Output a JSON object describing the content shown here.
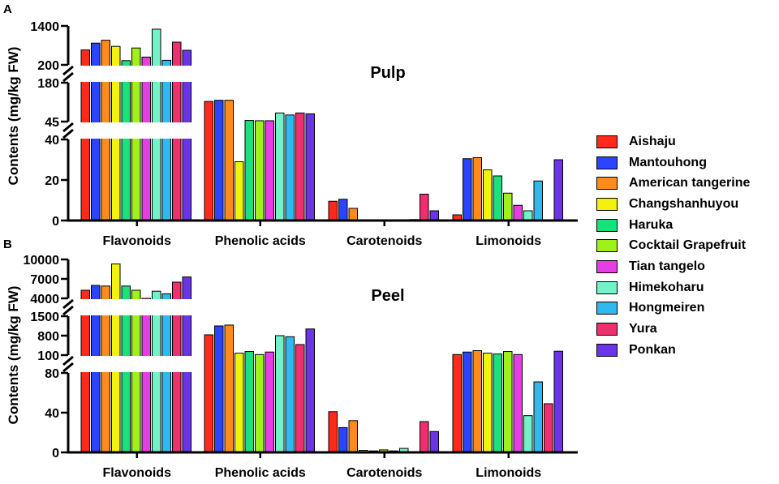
{
  "figure": {
    "series": [
      "Aishaju",
      "Mantouhong",
      "American tangerine",
      "Changshanhuyou",
      "Haruka",
      "Cocktail Grapefruit",
      "Tian tangelo",
      "Himekoharu",
      "Hongmeiren",
      "Yura",
      "Ponkan"
    ],
    "colors": [
      "#ff2a1a",
      "#2a44ff",
      "#ff8c1a",
      "#f2f20a",
      "#19e27a",
      "#9ef21a",
      "#e63de6",
      "#73f2c8",
      "#30b8f0",
      "#f0306e",
      "#6a35e6"
    ]
  },
  "chart_data": [
    {
      "type": "bar",
      "panel_label": "A",
      "title": "Pulp",
      "ylabel": "Contents (mg/kg FW)",
      "categories": [
        "Flavonoids",
        "Phenolic acids",
        "Carotenoids",
        "Limonoids"
      ],
      "axis_segments": [
        {
          "range": [
            0,
            40
          ],
          "ticks": [
            "0",
            "20",
            "40"
          ]
        },
        {
          "range": [
            45,
            180
          ],
          "ticks": [
            "45",
            "180"
          ]
        },
        {
          "range": [
            200,
            1400
          ],
          "ticks": [
            "200",
            "1400"
          ]
        }
      ],
      "series": [
        {
          "name": "Aishaju",
          "values": [
            660,
            115,
            9.5,
            2.8
          ]
        },
        {
          "name": "Mantouhong",
          "values": [
            870,
            119,
            10.5,
            30.5
          ]
        },
        {
          "name": "American tangerine",
          "values": [
            960,
            119,
            6,
            31
          ]
        },
        {
          "name": "Changshanhuyou",
          "values": [
            770,
            29,
            0,
            25
          ]
        },
        {
          "name": "Haruka",
          "values": [
            330,
            49,
            0,
            22
          ]
        },
        {
          "name": "Cocktail Grapefruit",
          "values": [
            720,
            48,
            0,
            13.5
          ]
        },
        {
          "name": "Tian tangelo",
          "values": [
            440,
            48,
            0,
            7.5
          ]
        },
        {
          "name": "Himekoharu",
          "values": [
            1300,
            75,
            0,
            4.8
          ]
        },
        {
          "name": "Hongmeiren",
          "values": [
            340,
            68,
            0.5,
            19.5
          ]
        },
        {
          "name": "Yura",
          "values": [
            900,
            75,
            13,
            0
          ]
        },
        {
          "name": "Ponkan",
          "values": [
            650,
            72,
            4.8,
            30
          ]
        }
      ]
    },
    {
      "type": "bar",
      "panel_label": "B",
      "title": "Peel",
      "ylabel": "Contents (mg/kg FW)",
      "categories": [
        "Flavonoids",
        "Phenolic acids",
        "Carotenoids",
        "Limonoids"
      ],
      "axis_segments": [
        {
          "range": [
            0,
            80
          ],
          "ticks": [
            "0",
            "40",
            "80"
          ]
        },
        {
          "range": [
            100,
            1500
          ],
          "ticks": [
            "100",
            "800",
            "1500"
          ]
        },
        {
          "range": [
            4000,
            10000
          ],
          "ticks": [
            "4000",
            "7000",
            "10000"
          ]
        }
      ],
      "series": [
        {
          "name": "Aishaju",
          "values": [
            5250,
            830,
            41,
            120
          ]
        },
        {
          "name": "Mantouhong",
          "values": [
            6000,
            1150,
            25,
            210
          ]
        },
        {
          "name": "American tangerine",
          "values": [
            5900,
            1180,
            32,
            260
          ]
        },
        {
          "name": "Changshanhuyou",
          "values": [
            9300,
            170,
            2,
            170
          ]
        },
        {
          "name": "Haruka",
          "values": [
            5900,
            230,
            1.5,
            140
          ]
        },
        {
          "name": "Cocktail Grapefruit",
          "values": [
            5250,
            120,
            2.5,
            230
          ]
        },
        {
          "name": "Tian tangelo",
          "values": [
            4000,
            210,
            1.5,
            120
          ]
        },
        {
          "name": "Himekoharu",
          "values": [
            5100,
            800,
            4,
            37
          ]
        },
        {
          "name": "Hongmeiren",
          "values": [
            4700,
            760,
            0,
            71
          ]
        },
        {
          "name": "Yura",
          "values": [
            6500,
            480,
            31,
            49
          ]
        },
        {
          "name": "Ponkan",
          "values": [
            7300,
            1040,
            21,
            240
          ]
        }
      ]
    }
  ]
}
